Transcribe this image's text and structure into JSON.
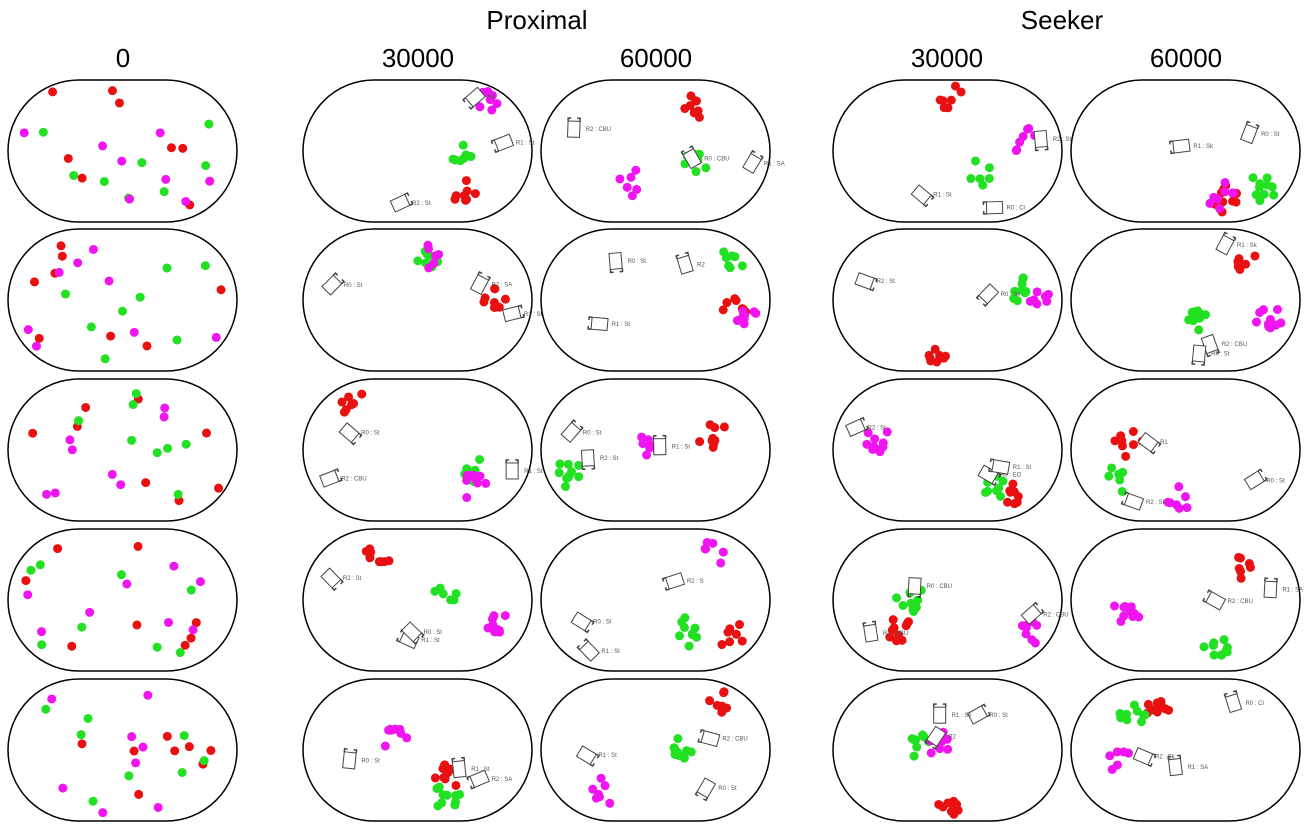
{
  "headers": {
    "groups": [
      "Proximal",
      "Seeker"
    ],
    "columns": [
      "0",
      "30000",
      "60000",
      "30000",
      "60000"
    ]
  },
  "panels": [
    [
      [
        "R0",
        "R1 : St",
        "R2 : St"
      ],
      [
        "R1 : SA",
        "R2 : CBU",
        "R0 : CBU"
      ],
      [
        "R0 : Cl",
        "R1 : St",
        "R2 : St"
      ],
      [
        "R0 : St",
        "R1 : Sk"
      ]
    ],
    [
      [
        "R0 : St",
        "R2 : SA",
        "R1 : St"
      ],
      [
        "R1 : St",
        "R2",
        "R0 : St"
      ],
      [
        "R0 : Sk",
        "R2 : St"
      ],
      [
        "R2 : CBU",
        "R1 : Sk",
        "R0 : St"
      ]
    ],
    [
      [
        "R0 : St",
        "R2 : CBU",
        "R1 : St"
      ],
      [
        "R2 : St",
        "R0 : St",
        "R1 : St"
      ],
      [
        "R2 : St",
        "R0 : EO",
        "R1 : St"
      ],
      [
        "R0 : St",
        "R1",
        "R2 : Sk"
      ]
    ],
    [
      [
        "R1 : St",
        "R0 : St",
        "R2 : St"
      ],
      [
        "R0 : St",
        "R1 : St",
        "R2 : S"
      ],
      [
        "R1 : CBU",
        "R2 : CBU",
        "R0 : CBU"
      ],
      [
        "R1 : SA",
        "R2 : CBU"
      ]
    ],
    [
      [
        "R1 : St",
        "R0 : St",
        "R2 : SA"
      ],
      [
        "R2 : CBU",
        "R1 : St",
        "R0 : St"
      ],
      [
        "R0 : St",
        "R2",
        "R1 : Sk"
      ],
      [
        "R1 : SA",
        "R2 : Sk",
        "R0 : Cl"
      ]
    ]
  ]
}
